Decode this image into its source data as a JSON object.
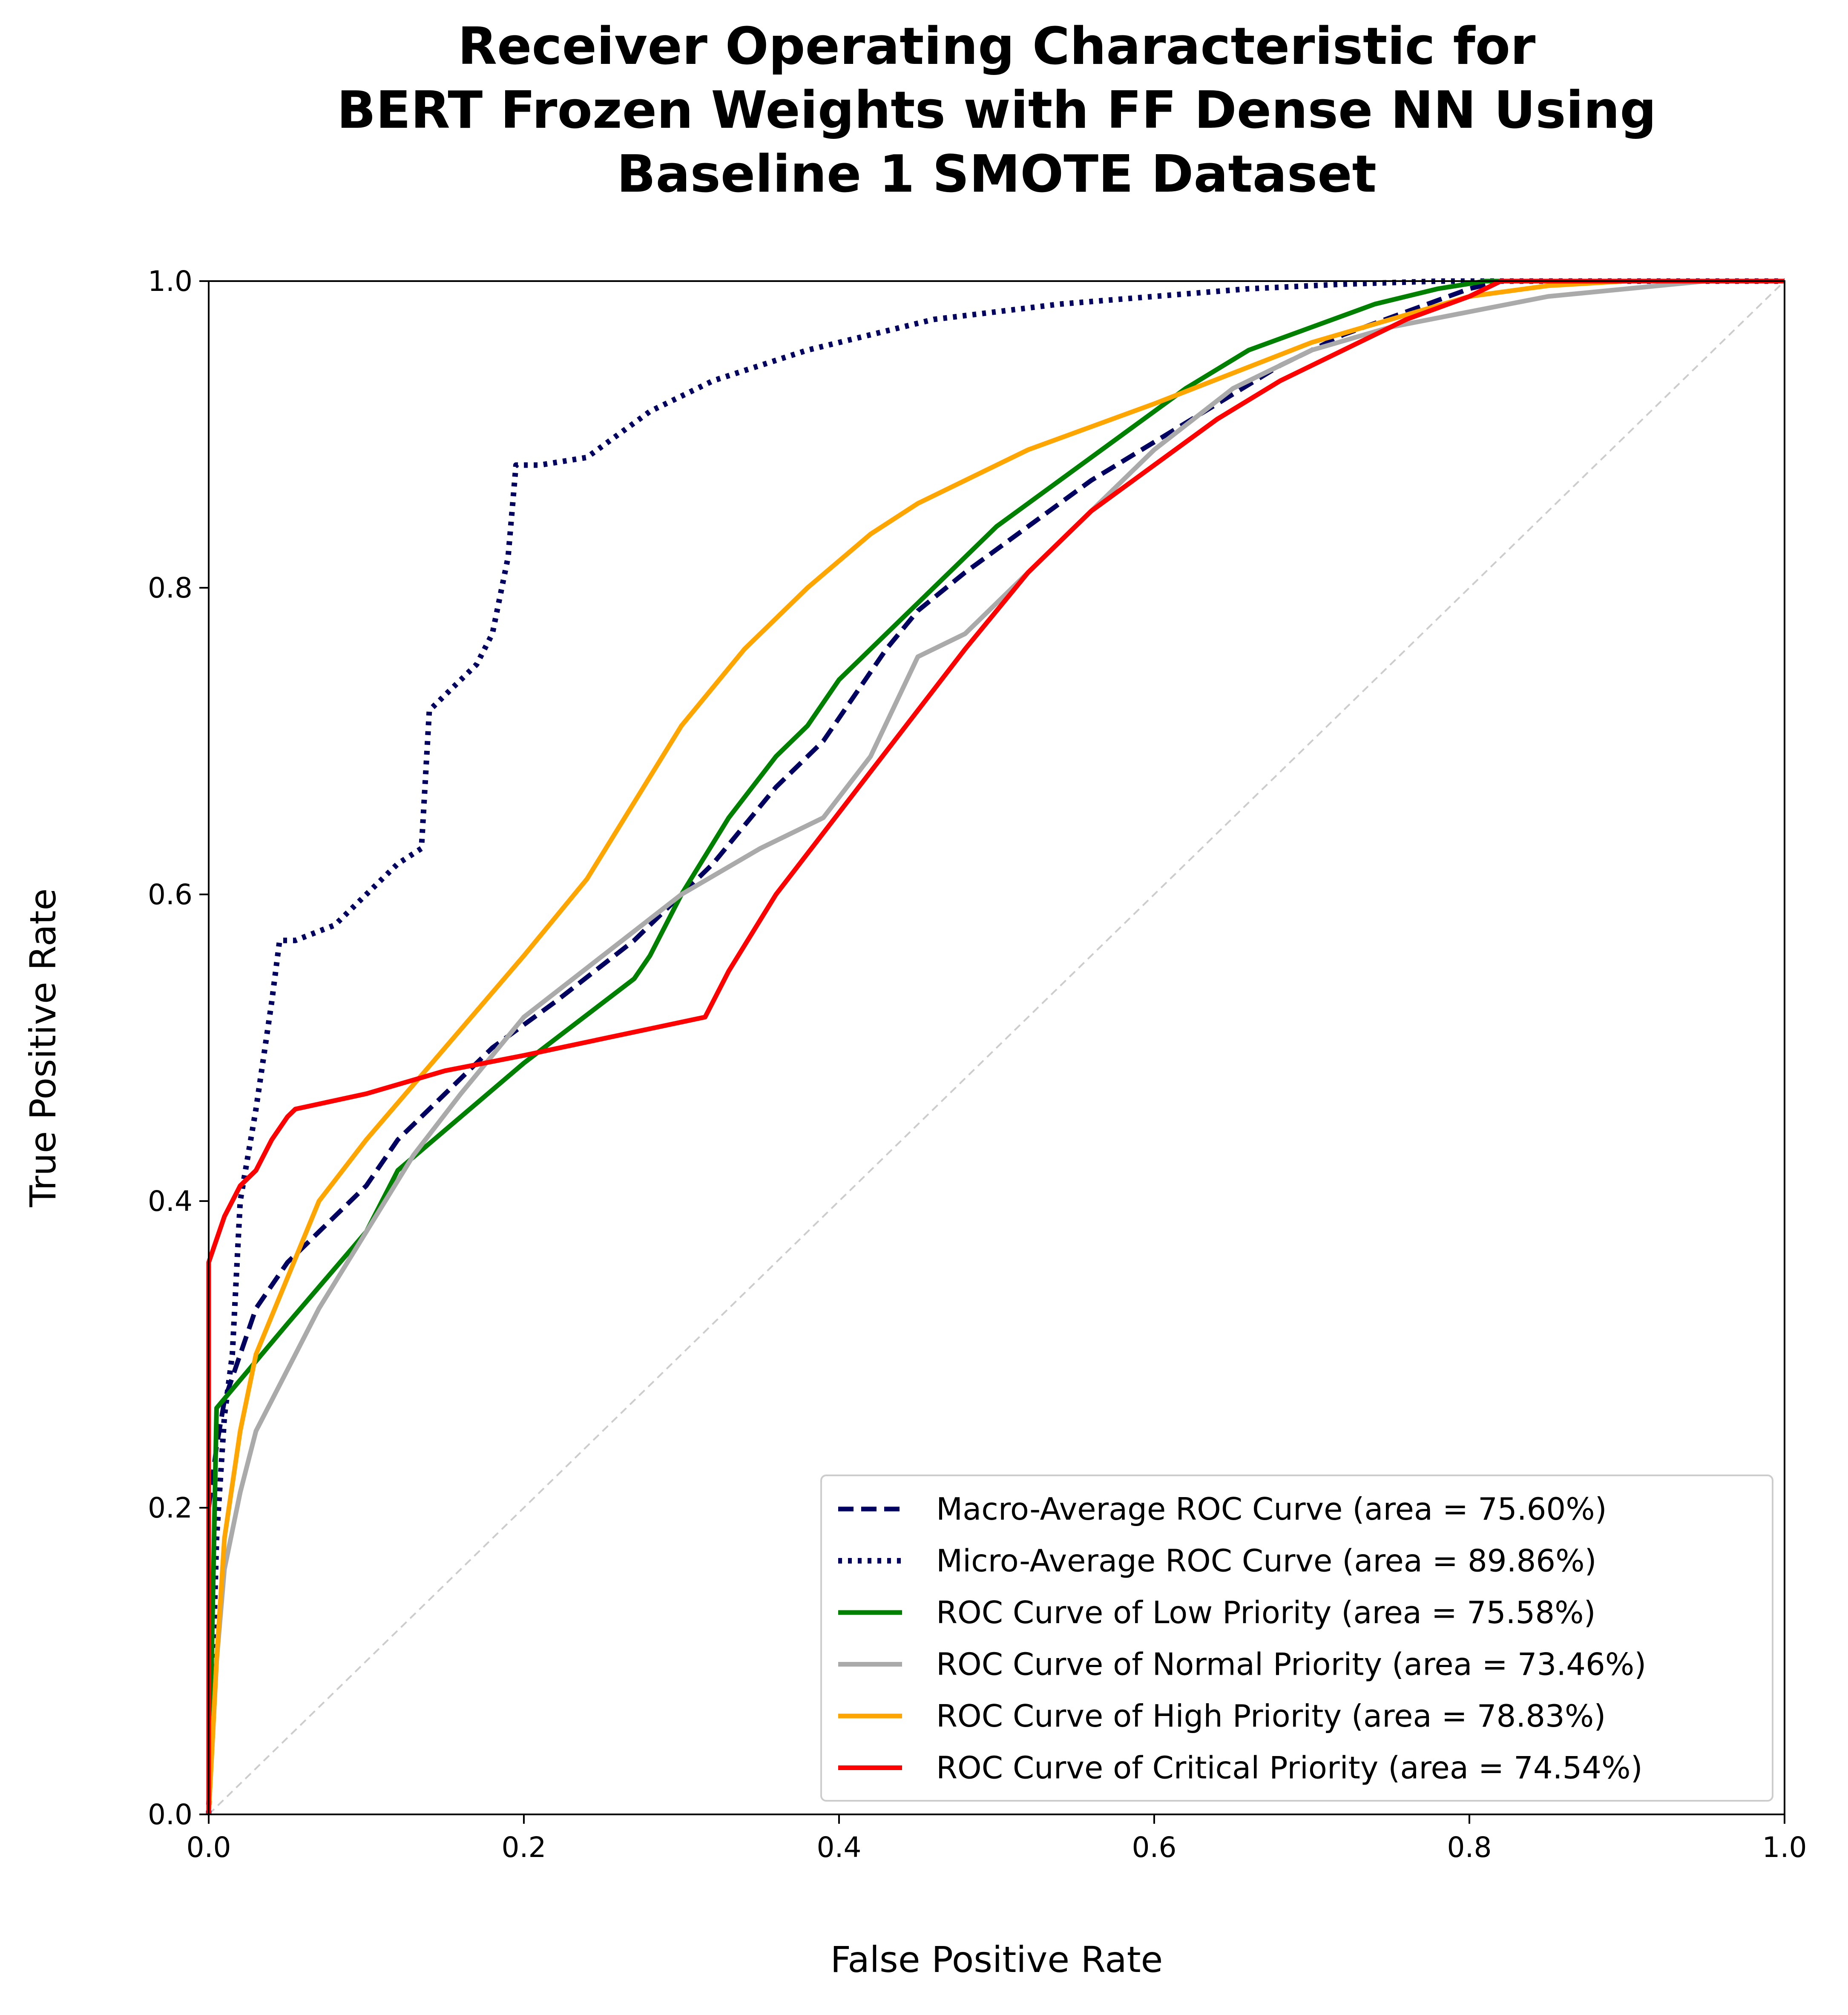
{
  "chart_data": {
    "type": "line",
    "title_lines": [
      "Receiver Operating Characteristic for",
      "BERT Frozen Weights with FF Dense NN Using",
      "Baseline 1 SMOTE Dataset"
    ],
    "xlabel": "False Positive Rate",
    "ylabel": "True Positive Rate",
    "xlim": [
      0,
      1
    ],
    "ylim": [
      0,
      1
    ],
    "x_ticks": [
      "0.0",
      "0.2",
      "0.4",
      "0.6",
      "0.8",
      "1.0"
    ],
    "y_ticks": [
      "0.0",
      "0.2",
      "0.4",
      "0.6",
      "0.8",
      "1.0"
    ],
    "grid": false,
    "legend_position": "lower-right",
    "reference_line": {
      "x": [
        0,
        1
      ],
      "y": [
        0,
        1
      ],
      "style": "dashed",
      "color": "#cccccc"
    },
    "series": [
      {
        "name": "Macro-Average ROC Curve (area = 75.60%)",
        "color": "#000060",
        "style": "dashed",
        "x": [
          0,
          0.005,
          0.01,
          0.02,
          0.03,
          0.05,
          0.07,
          0.1,
          0.12,
          0.15,
          0.18,
          0.22,
          0.27,
          0.32,
          0.36,
          0.39,
          0.41,
          0.43,
          0.45,
          0.48,
          0.52,
          0.56,
          0.6,
          0.64,
          0.68,
          0.72,
          0.76,
          0.8,
          0.82,
          1.0
        ],
        "y": [
          0.2,
          0.24,
          0.27,
          0.3,
          0.33,
          0.36,
          0.38,
          0.41,
          0.44,
          0.47,
          0.5,
          0.53,
          0.57,
          0.62,
          0.67,
          0.7,
          0.73,
          0.76,
          0.785,
          0.81,
          0.84,
          0.87,
          0.895,
          0.92,
          0.945,
          0.965,
          0.98,
          0.995,
          1.0,
          1.0
        ]
      },
      {
        "name": "Micro-Average ROC Curve (area = 89.86%)",
        "color": "#000060",
        "style": "dotted",
        "x": [
          0,
          0.005,
          0.01,
          0.015,
          0.02,
          0.03,
          0.04,
          0.045,
          0.055,
          0.08,
          0.1,
          0.12,
          0.135,
          0.14,
          0.15,
          0.17,
          0.18,
          0.19,
          0.195,
          0.21,
          0.24,
          0.26,
          0.28,
          0.3,
          0.32,
          0.35,
          0.38,
          0.42,
          0.46,
          0.5,
          0.54,
          0.6,
          0.66,
          0.72,
          0.78,
          0.8,
          1.0
        ],
        "y": [
          0,
          0.18,
          0.26,
          0.3,
          0.4,
          0.46,
          0.53,
          0.57,
          0.57,
          0.58,
          0.6,
          0.62,
          0.63,
          0.72,
          0.73,
          0.75,
          0.77,
          0.82,
          0.88,
          0.88,
          0.885,
          0.9,
          0.915,
          0.925,
          0.935,
          0.945,
          0.955,
          0.965,
          0.975,
          0.98,
          0.985,
          0.99,
          0.995,
          0.998,
          1.0,
          1.0,
          1.0
        ]
      },
      {
        "name": "ROC Curve of Low Priority (area = 75.58%)",
        "color": "#008000",
        "style": "solid",
        "x": [
          0,
          0.005,
          0.05,
          0.1,
          0.12,
          0.2,
          0.27,
          0.28,
          0.3,
          0.33,
          0.36,
          0.38,
          0.4,
          0.43,
          0.46,
          0.5,
          0.54,
          0.58,
          0.62,
          0.66,
          0.7,
          0.74,
          0.78,
          0.81,
          1.0
        ],
        "y": [
          0,
          0.265,
          0.32,
          0.38,
          0.42,
          0.49,
          0.545,
          0.56,
          0.6,
          0.65,
          0.69,
          0.71,
          0.74,
          0.77,
          0.8,
          0.84,
          0.87,
          0.9,
          0.93,
          0.955,
          0.97,
          0.985,
          0.995,
          1.0,
          1.0
        ]
      },
      {
        "name": "ROC Curve of Normal Priority (area = 73.46%)",
        "color": "#aaaaaa",
        "style": "solid",
        "x": [
          0,
          0.005,
          0.01,
          0.02,
          0.03,
          0.05,
          0.07,
          0.1,
          0.13,
          0.16,
          0.2,
          0.25,
          0.3,
          0.35,
          0.39,
          0.42,
          0.45,
          0.48,
          0.52,
          0.56,
          0.6,
          0.65,
          0.7,
          0.75,
          0.8,
          0.85,
          0.9,
          0.95,
          1.0
        ],
        "y": [
          0,
          0.1,
          0.16,
          0.21,
          0.25,
          0.29,
          0.33,
          0.38,
          0.43,
          0.47,
          0.52,
          0.56,
          0.6,
          0.63,
          0.65,
          0.69,
          0.755,
          0.77,
          0.81,
          0.85,
          0.89,
          0.93,
          0.955,
          0.97,
          0.98,
          0.99,
          0.995,
          1.0,
          1.0
        ]
      },
      {
        "name": "ROC Curve of High Priority (area = 78.83%)",
        "color": "#ffa500",
        "style": "solid",
        "x": [
          0,
          0.005,
          0.01,
          0.02,
          0.03,
          0.05,
          0.07,
          0.1,
          0.15,
          0.2,
          0.24,
          0.27,
          0.3,
          0.34,
          0.38,
          0.42,
          0.45,
          0.48,
          0.52,
          0.56,
          0.6,
          0.65,
          0.7,
          0.75,
          0.8,
          0.85,
          0.9,
          1.0
        ],
        "y": [
          0,
          0.1,
          0.18,
          0.25,
          0.3,
          0.35,
          0.4,
          0.44,
          0.5,
          0.56,
          0.61,
          0.66,
          0.71,
          0.76,
          0.8,
          0.835,
          0.855,
          0.87,
          0.89,
          0.905,
          0.92,
          0.94,
          0.96,
          0.975,
          0.99,
          0.997,
          1.0,
          1.0
        ]
      },
      {
        "name": "ROC Curve of Critical Priority (area = 74.54%)",
        "color": "#ff0000",
        "style": "solid",
        "x": [
          0,
          0.0,
          0.01,
          0.02,
          0.03,
          0.04,
          0.05,
          0.055,
          0.1,
          0.15,
          0.2,
          0.315,
          0.33,
          0.36,
          0.39,
          0.42,
          0.45,
          0.48,
          0.52,
          0.56,
          0.6,
          0.64,
          0.68,
          0.72,
          0.76,
          0.8,
          0.82,
          1.0
        ],
        "y": [
          0,
          0.36,
          0.39,
          0.41,
          0.42,
          0.44,
          0.455,
          0.46,
          0.47,
          0.485,
          0.495,
          0.52,
          0.55,
          0.6,
          0.64,
          0.68,
          0.72,
          0.76,
          0.81,
          0.85,
          0.88,
          0.91,
          0.935,
          0.955,
          0.975,
          0.99,
          1.0,
          1.0
        ]
      }
    ]
  }
}
